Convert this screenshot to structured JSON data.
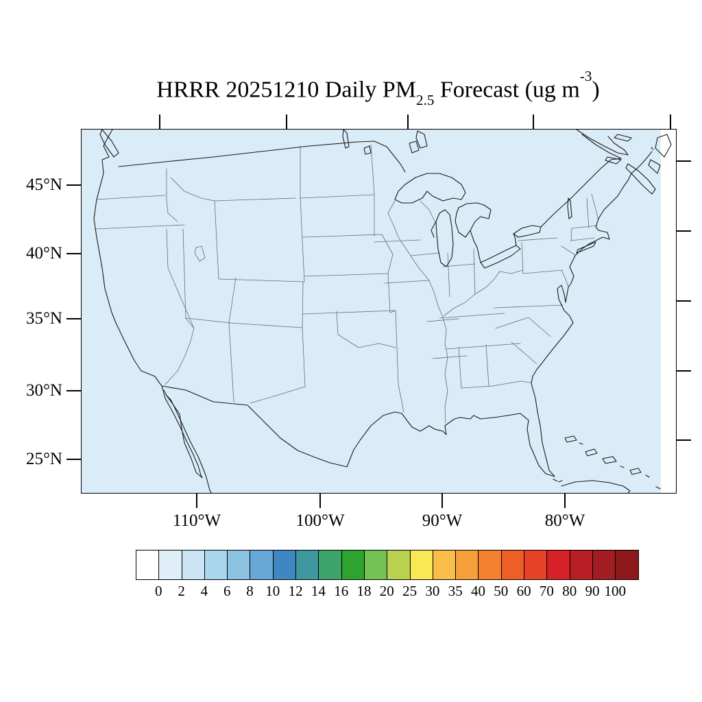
{
  "title": {
    "text_prefix": "HRRR 20251210 Daily PM",
    "subscript": "2.5",
    "text_middle": " Forecast (ug m",
    "superscript": "-3",
    "text_suffix": ")"
  },
  "axes": {
    "left_tick_labels": [
      "45°N",
      "40°N",
      "35°N",
      "30°N",
      "25°N"
    ],
    "bottom_tick_labels": [
      "110°W",
      "100°W",
      "90°W",
      "80°W"
    ]
  },
  "colorbar": {
    "tick_labels": [
      "0",
      "2",
      "4",
      "6",
      "8",
      "10",
      "12",
      "14",
      "16",
      "18",
      "20",
      "25",
      "30",
      "35",
      "40",
      "50",
      "60",
      "70",
      "80",
      "90",
      "100"
    ],
    "cell_colors": [
      "#ffffff",
      "#e0eef8",
      "#cbe5f4",
      "#abd7ee",
      "#8cc3e2",
      "#68a8d6",
      "#3f87c2",
      "#3f97a0",
      "#3ea46c",
      "#2ea32f",
      "#74c254",
      "#b8d14e",
      "#f8e855",
      "#f9bd49",
      "#f6a03c",
      "#f4812f",
      "#ee5f28",
      "#e84327",
      "#d62028",
      "#b81f25",
      "#a21d21",
      "#8d191c"
    ]
  },
  "map": {
    "fill_color": "#daecf8",
    "no_data_strip_color": "#ffffff",
    "coastline_color": "#1a1a1a",
    "state_border_color": "#5f6e78"
  },
  "chart_data": {
    "type": "heatmap",
    "title": "HRRR 20251210 Daily PM2.5 Forecast (ug m-3)",
    "region": "Continental United States (Lambert conformal HRRR domain)",
    "x_tick_labels": [
      "110°W",
      "100°W",
      "90°W",
      "80°W"
    ],
    "y_tick_labels": [
      "45°N",
      "40°N",
      "35°N",
      "30°N",
      "25°N"
    ],
    "colorbar_levels": [
      0,
      2,
      4,
      6,
      8,
      10,
      12,
      14,
      16,
      18,
      20,
      25,
      30,
      35,
      40,
      50,
      60,
      70,
      80,
      90,
      100
    ],
    "colorbar_colors": [
      "#ffffff",
      "#e0eef8",
      "#cbe5f4",
      "#abd7ee",
      "#8cc3e2",
      "#68a8d6",
      "#3f87c2",
      "#3f97a0",
      "#3ea46c",
      "#2ea32f",
      "#74c254",
      "#b8d14e",
      "#f8e855",
      "#f9bd49",
      "#f6a03c",
      "#f4812f",
      "#ee5f28",
      "#e84327",
      "#d62028",
      "#b81f25",
      "#a21d21",
      "#8d191c"
    ],
    "field_summary": "Entire mapped domain is shaded in the lowest 0-2 ug m-3 bin color (uniform light blue); no elevated PM2.5 regions are depicted",
    "legend_position": "bottom"
  }
}
